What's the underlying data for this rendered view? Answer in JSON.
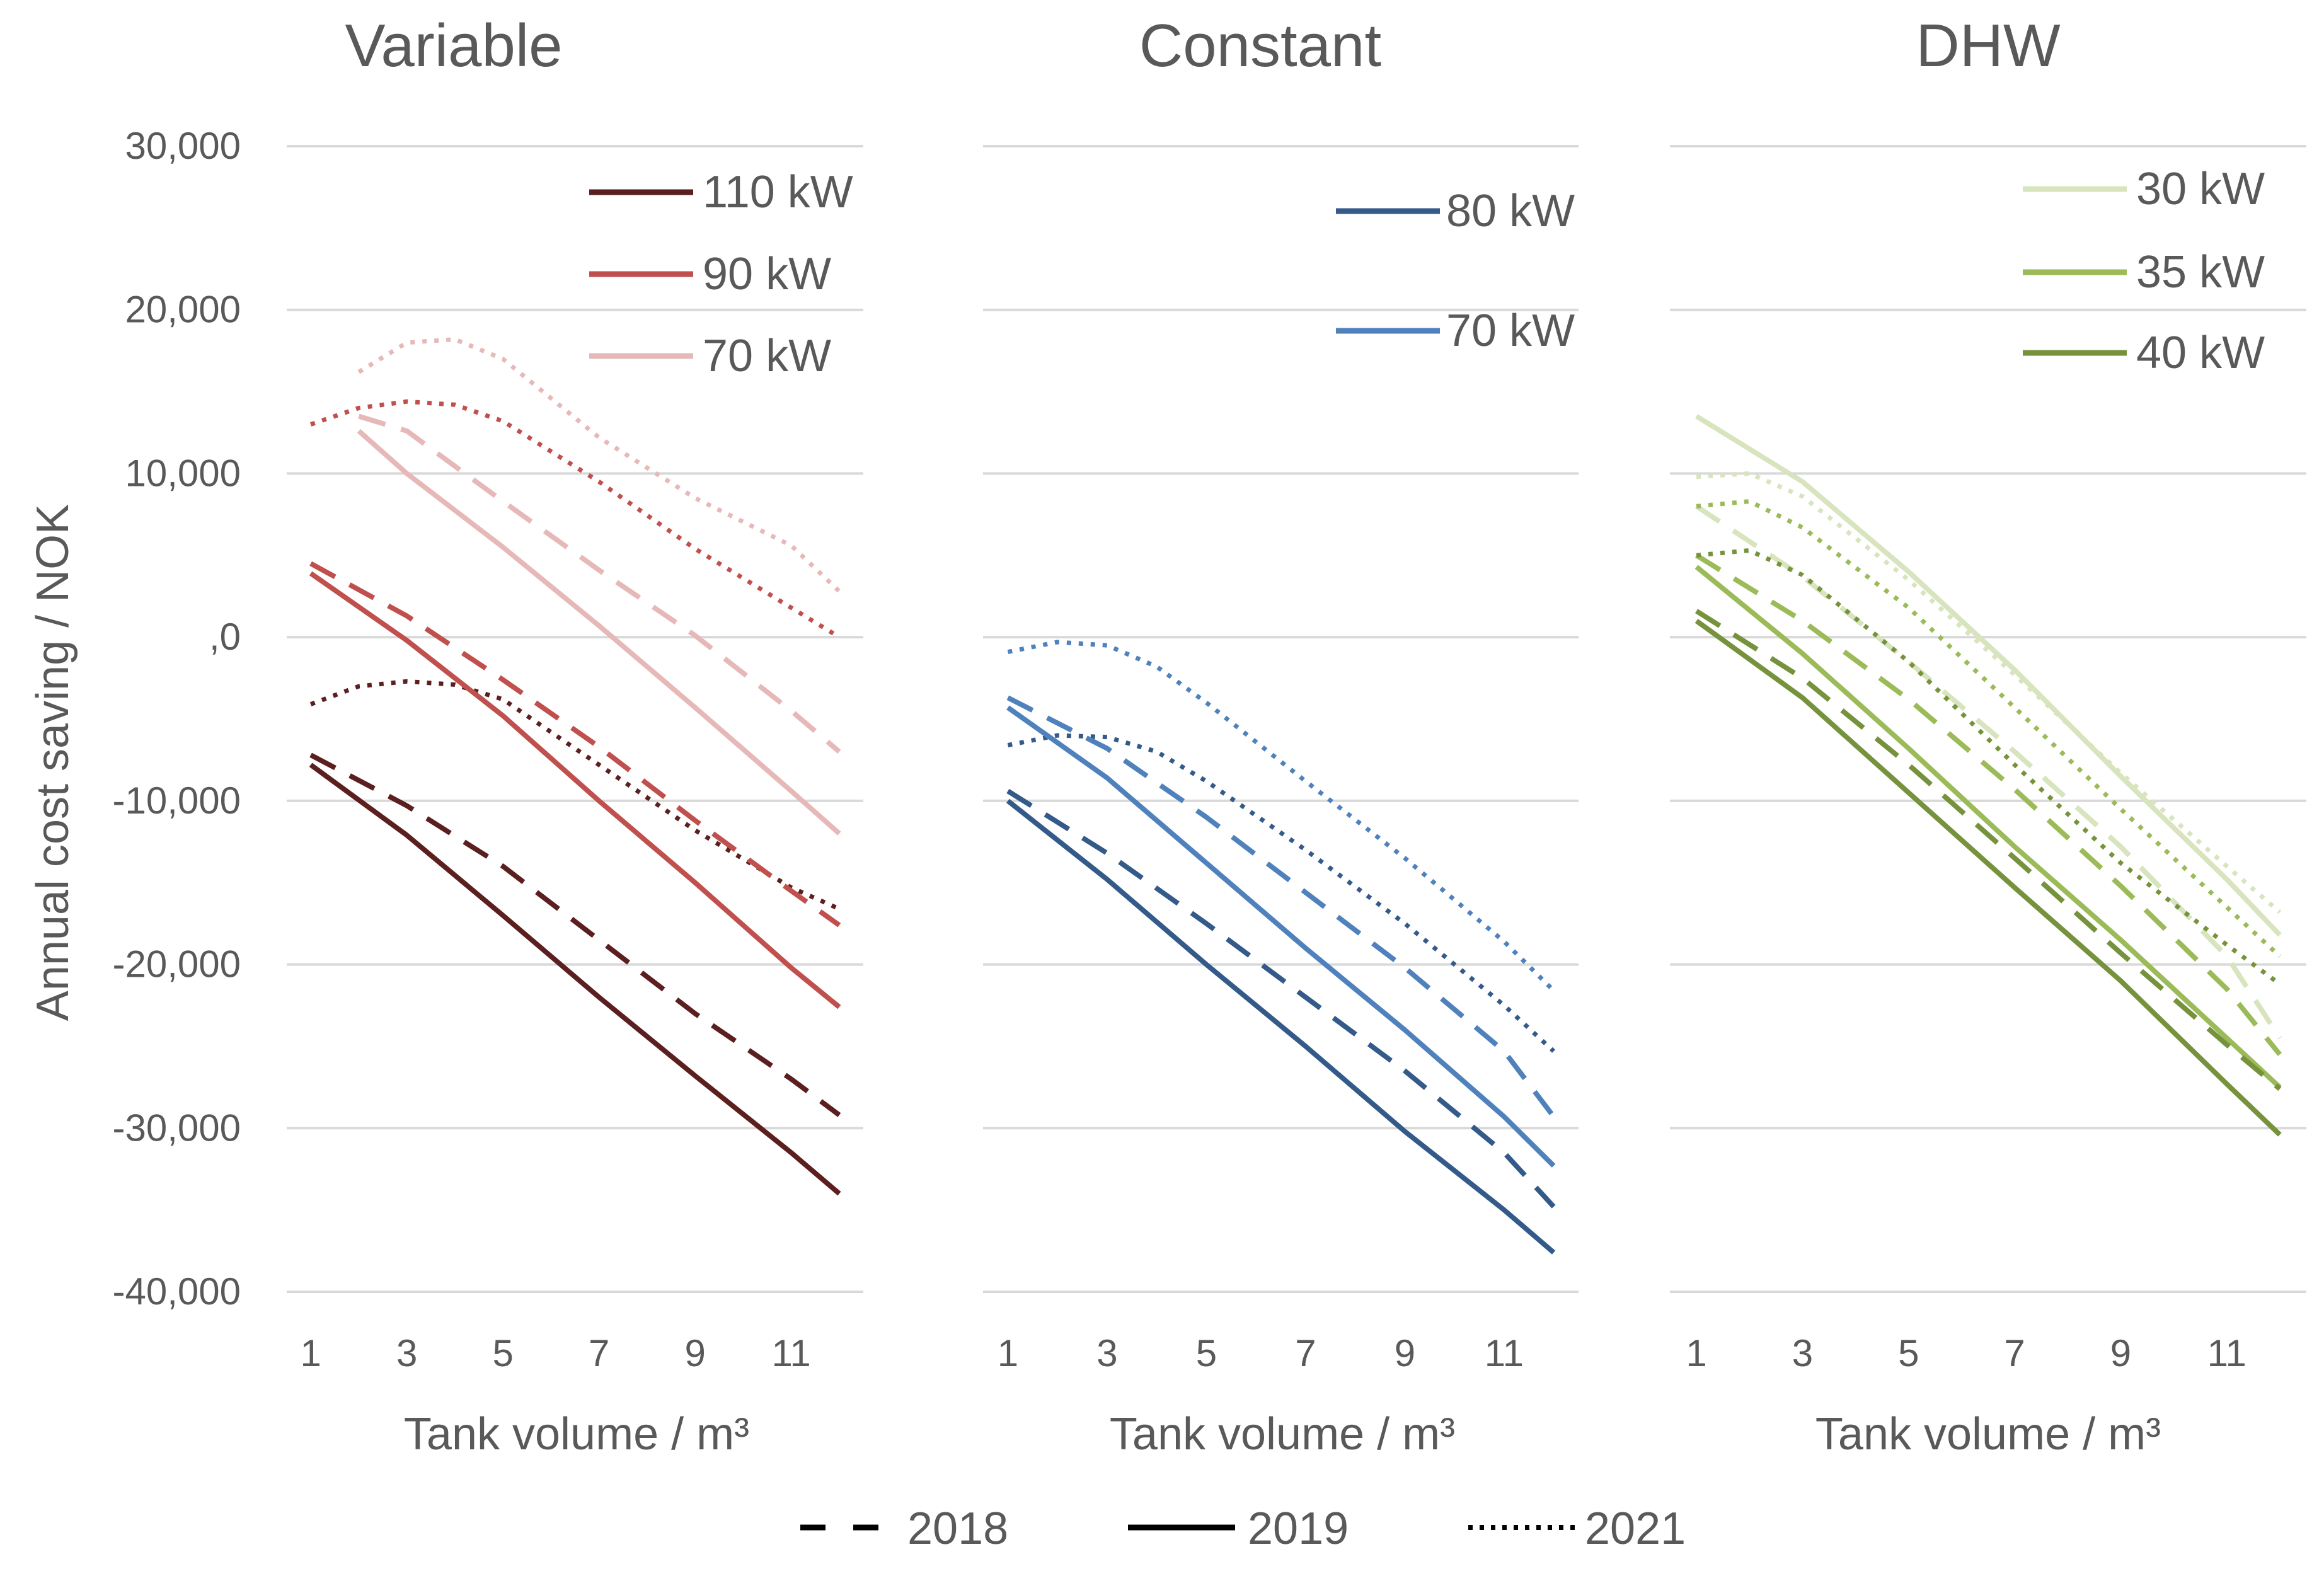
{
  "chart_data": {
    "type": "line",
    "ylabel": "Annual cost saving / NOK",
    "xlabel": "Tank volume / m³",
    "ylim": [
      -40000,
      30000
    ],
    "y_ticks": [
      30000,
      20000,
      10000,
      0,
      -10000,
      -20000,
      -30000,
      -40000
    ],
    "y_tick_labels": [
      "30,000",
      "20,000",
      "10,000",
      ",0",
      "-10,000",
      "-20,000",
      "-30,000",
      "-40,000"
    ],
    "x_ticks": [
      1,
      3,
      5,
      7,
      9,
      11
    ],
    "x_tick_labels": [
      "1",
      "3",
      "5",
      "7",
      "9",
      "11"
    ],
    "year_legend": [
      {
        "label": "2018",
        "style": "dashed"
      },
      {
        "label": "2019",
        "style": "solid"
      },
      {
        "label": "2021",
        "style": "dotted"
      }
    ],
    "panels": [
      {
        "title": "Variable",
        "xlim": [
          0.5,
          12.5
        ],
        "legend_position": "top-right",
        "legend": [
          {
            "label": "110 kW",
            "color": "#5c1f1f"
          },
          {
            "label": "90 kW",
            "color": "#c0504d"
          },
          {
            "label": "70 kW",
            "color": "#e6b9b8"
          }
        ],
        "series": [
          {
            "power": "110 kW",
            "year": "2018",
            "style": "dashed",
            "color": "#5c1f1f",
            "x": [
              1,
              3,
              5,
              7,
              9,
              11,
              12
            ],
            "y": [
              -7200,
              -10300,
              -14000,
              -18500,
              -23000,
              -27000,
              -29200
            ]
          },
          {
            "power": "110 kW",
            "year": "2019",
            "style": "solid",
            "color": "#5c1f1f",
            "x": [
              1,
              3,
              5,
              7,
              9,
              11,
              12
            ],
            "y": [
              -7800,
              -12100,
              -17000,
              -22000,
              -26800,
              -31500,
              -34000
            ]
          },
          {
            "power": "110 kW",
            "year": "2021",
            "style": "dotted",
            "color": "#5c1f1f",
            "x": [
              1,
              2,
              3,
              4,
              5,
              7,
              9,
              11,
              12
            ],
            "y": [
              -4100,
              -3000,
              -2700,
              -2900,
              -3800,
              -7800,
              -11800,
              -15300,
              -16600
            ]
          },
          {
            "power": "90 kW",
            "year": "2018",
            "style": "dashed",
            "color": "#c0504d",
            "x": [
              1,
              3,
              5,
              7,
              9,
              11,
              12
            ],
            "y": [
              4500,
              1300,
              -2600,
              -6700,
              -11200,
              -15500,
              -17600
            ]
          },
          {
            "power": "90 kW",
            "year": "2019",
            "style": "solid",
            "color": "#c0504d",
            "x": [
              1,
              3,
              5,
              7,
              9,
              11,
              12
            ],
            "y": [
              3900,
              -200,
              -4800,
              -10000,
              -15000,
              -20200,
              -22600
            ]
          },
          {
            "power": "90 kW",
            "year": "2021",
            "style": "dotted",
            "color": "#c0504d",
            "x": [
              1,
              2,
              3,
              4,
              5,
              7,
              9,
              11,
              12
            ],
            "y": [
              13000,
              14000,
              14400,
              14200,
              13200,
              9500,
              5400,
              1800,
              0
            ]
          },
          {
            "power": "70 kW",
            "year": "2018",
            "style": "dashed",
            "color": "#e6b9b8",
            "x": [
              2,
              3,
              5,
              7,
              9,
              11,
              12
            ],
            "y": [
              13500,
              12600,
              8300,
              4100,
              100,
              -4500,
              -7000
            ]
          },
          {
            "power": "70 kW",
            "year": "2019",
            "style": "solid",
            "color": "#e6b9b8",
            "x": [
              2,
              3,
              5,
              7,
              9,
              11,
              12
            ],
            "y": [
              12600,
              10000,
              5500,
              700,
              -4300,
              -9400,
              -12000
            ]
          },
          {
            "power": "70 kW",
            "year": "2021",
            "style": "dotted",
            "color": "#e6b9b8",
            "x": [
              2,
              3,
              4,
              5,
              7,
              9,
              11,
              12
            ],
            "y": [
              16200,
              18000,
              18200,
              17000,
              12200,
              8500,
              5600,
              2800
            ]
          }
        ]
      },
      {
        "title": "Constant",
        "xlim": [
          0.5,
          12.5
        ],
        "legend_position": "top-right",
        "legend": [
          {
            "label": "80 kW",
            "color": "#345a8a"
          },
          {
            "label": "70 kW",
            "color": "#4f81bd"
          }
        ],
        "series": [
          {
            "power": "80 kW",
            "year": "2018",
            "style": "dashed",
            "color": "#345a8a",
            "x": [
              1,
              3,
              5,
              7,
              9,
              11,
              12
            ],
            "y": [
              -9400,
              -13200,
              -17500,
              -22000,
              -26500,
              -31500,
              -34800
            ]
          },
          {
            "power": "80 kW",
            "year": "2019",
            "style": "solid",
            "color": "#345a8a",
            "x": [
              1,
              3,
              5,
              7,
              9,
              11,
              12
            ],
            "y": [
              -10000,
              -14800,
              -20000,
              -25000,
              -30200,
              -35000,
              -37600
            ]
          },
          {
            "power": "80 kW",
            "year": "2021",
            "style": "dotted",
            "color": "#345a8a",
            "x": [
              1,
              2,
              3,
              4,
              5,
              7,
              9,
              11,
              12
            ],
            "y": [
              -6600,
              -6000,
              -6100,
              -7000,
              -8800,
              -13000,
              -17500,
              -22500,
              -25300
            ]
          },
          {
            "power": "70 kW",
            "year": "2018",
            "style": "dashed",
            "color": "#4f81bd",
            "x": [
              1,
              3,
              5,
              7,
              9,
              11,
              12
            ],
            "y": [
              -3700,
              -6800,
              -11000,
              -15600,
              -20200,
              -25300,
              -29300
            ]
          },
          {
            "power": "70 kW",
            "year": "2019",
            "style": "solid",
            "color": "#4f81bd",
            "x": [
              1,
              3,
              5,
              7,
              9,
              11,
              12
            ],
            "y": [
              -4300,
              -8600,
              -13800,
              -19000,
              -24000,
              -29300,
              -32300
            ]
          },
          {
            "power": "70 kW",
            "year": "2021",
            "style": "dotted",
            "color": "#4f81bd",
            "x": [
              1,
              2,
              3,
              4,
              5,
              7,
              9,
              11,
              12
            ],
            "y": [
              -900,
              -300,
              -500,
              -1800,
              -4000,
              -8800,
              -13500,
              -18600,
              -21600
            ]
          }
        ]
      },
      {
        "title": "DHW",
        "xlim": [
          0.5,
          12.5
        ],
        "legend_position": "top-right",
        "legend": [
          {
            "label": "30 kW",
            "color": "#d7e4bd"
          },
          {
            "label": "35 kW",
            "color": "#9bbb59"
          },
          {
            "label": "40 kW",
            "color": "#76923c"
          }
        ],
        "series": [
          {
            "power": "30 kW",
            "year": "2018",
            "style": "dashed",
            "color": "#d7e4bd",
            "x": [
              1,
              3,
              5,
              7,
              9,
              11,
              12
            ],
            "y": [
              8000,
              3700,
              -1500,
              -7000,
              -12800,
              -19500,
              -24500
            ]
          },
          {
            "power": "30 kW",
            "year": "2019",
            "style": "solid",
            "color": "#d7e4bd",
            "x": [
              1,
              3,
              5,
              7,
              9,
              11,
              12
            ],
            "y": [
              13500,
              9500,
              4000,
              -2000,
              -8500,
              -14800,
              -18200
            ]
          },
          {
            "power": "30 kW",
            "year": "2021",
            "style": "dotted",
            "color": "#d7e4bd",
            "x": [
              1,
              2,
              3,
              5,
              7,
              9,
              11,
              12
            ],
            "y": [
              9800,
              10000,
              8600,
              3500,
              -2300,
              -8300,
              -14000,
              -16800
            ]
          },
          {
            "power": "35 kW",
            "year": "2018",
            "style": "dashed",
            "color": "#9bbb59",
            "x": [
              1,
              3,
              5,
              7,
              9,
              11,
              12
            ],
            "y": [
              5000,
              1000,
              -3800,
              -9300,
              -15200,
              -21500,
              -25500
            ]
          },
          {
            "power": "35 kW",
            "year": "2019",
            "style": "solid",
            "color": "#9bbb59",
            "x": [
              1,
              3,
              5,
              7,
              9,
              11,
              12
            ],
            "y": [
              4300,
              -1000,
              -6800,
              -12800,
              -18500,
              -24500,
              -27500
            ]
          },
          {
            "power": "35 kW",
            "year": "2021",
            "style": "dotted",
            "color": "#9bbb59",
            "x": [
              1,
              2,
              3,
              5,
              7,
              9,
              11,
              12
            ],
            "y": [
              8000,
              8300,
              6700,
              1800,
              -4300,
              -10500,
              -16500,
              -19500
            ]
          },
          {
            "power": "40 kW",
            "year": "2018",
            "style": "dashed",
            "color": "#76923c",
            "x": [
              1,
              3,
              5,
              7,
              9,
              11,
              12
            ],
            "y": [
              1600,
              -2500,
              -7800,
              -13500,
              -19300,
              -24900,
              -27600
            ]
          },
          {
            "power": "40 kW",
            "year": "2019",
            "style": "solid",
            "color": "#76923c",
            "x": [
              1,
              3,
              5,
              7,
              9,
              11,
              12
            ],
            "y": [
              1000,
              -3700,
              -9500,
              -15300,
              -21000,
              -27300,
              -30400
            ]
          },
          {
            "power": "40 kW",
            "year": "2021",
            "style": "dotted",
            "color": "#76923c",
            "x": [
              1,
              2,
              3,
              5,
              7,
              9,
              11,
              12
            ],
            "y": [
              5000,
              5300,
              3800,
              -1500,
              -7800,
              -13800,
              -18800,
              -21200
            ]
          }
        ]
      }
    ]
  }
}
